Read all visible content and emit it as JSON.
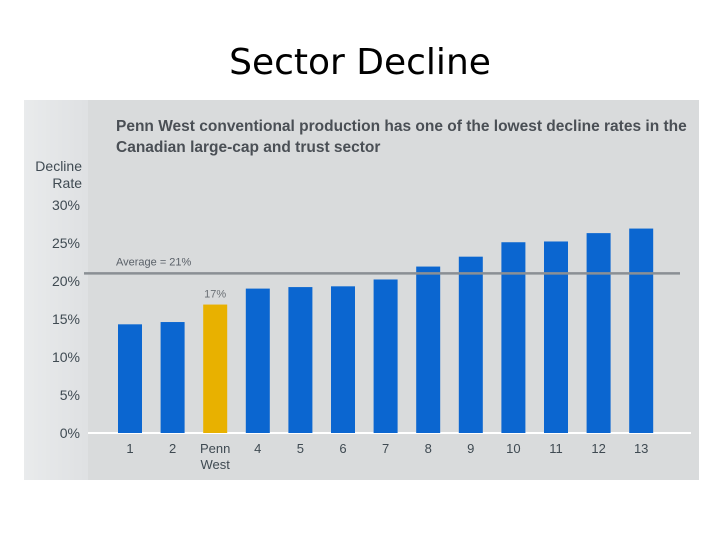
{
  "slide": {
    "title": "Sector Decline"
  },
  "chart_data": {
    "type": "bar",
    "title": "Penn West conventional production has one of the lowest decline rates in the Canadian large-cap and trust sector",
    "ylabel": "Decline Rate",
    "ylim": [
      0,
      30
    ],
    "yticks": [
      "0%",
      "5%",
      "10%",
      "15%",
      "20%",
      "25%",
      "30%"
    ],
    "categories": [
      "1",
      "2",
      "Penn West",
      "4",
      "5",
      "6",
      "7",
      "8",
      "9",
      "10",
      "11",
      "12",
      "13"
    ],
    "values": [
      14.3,
      14.6,
      16.9,
      19.0,
      19.2,
      19.3,
      20.2,
      21.9,
      23.2,
      25.1,
      25.2,
      26.3,
      26.9
    ],
    "highlight": {
      "category": "Penn West",
      "label": "17%",
      "color": "#e8b100"
    },
    "bar_color": "#0b66d0",
    "reference_line": {
      "value": 21,
      "label": "Average = 21%",
      "color": "#8a8f94"
    },
    "grid": false,
    "legend": "none"
  }
}
